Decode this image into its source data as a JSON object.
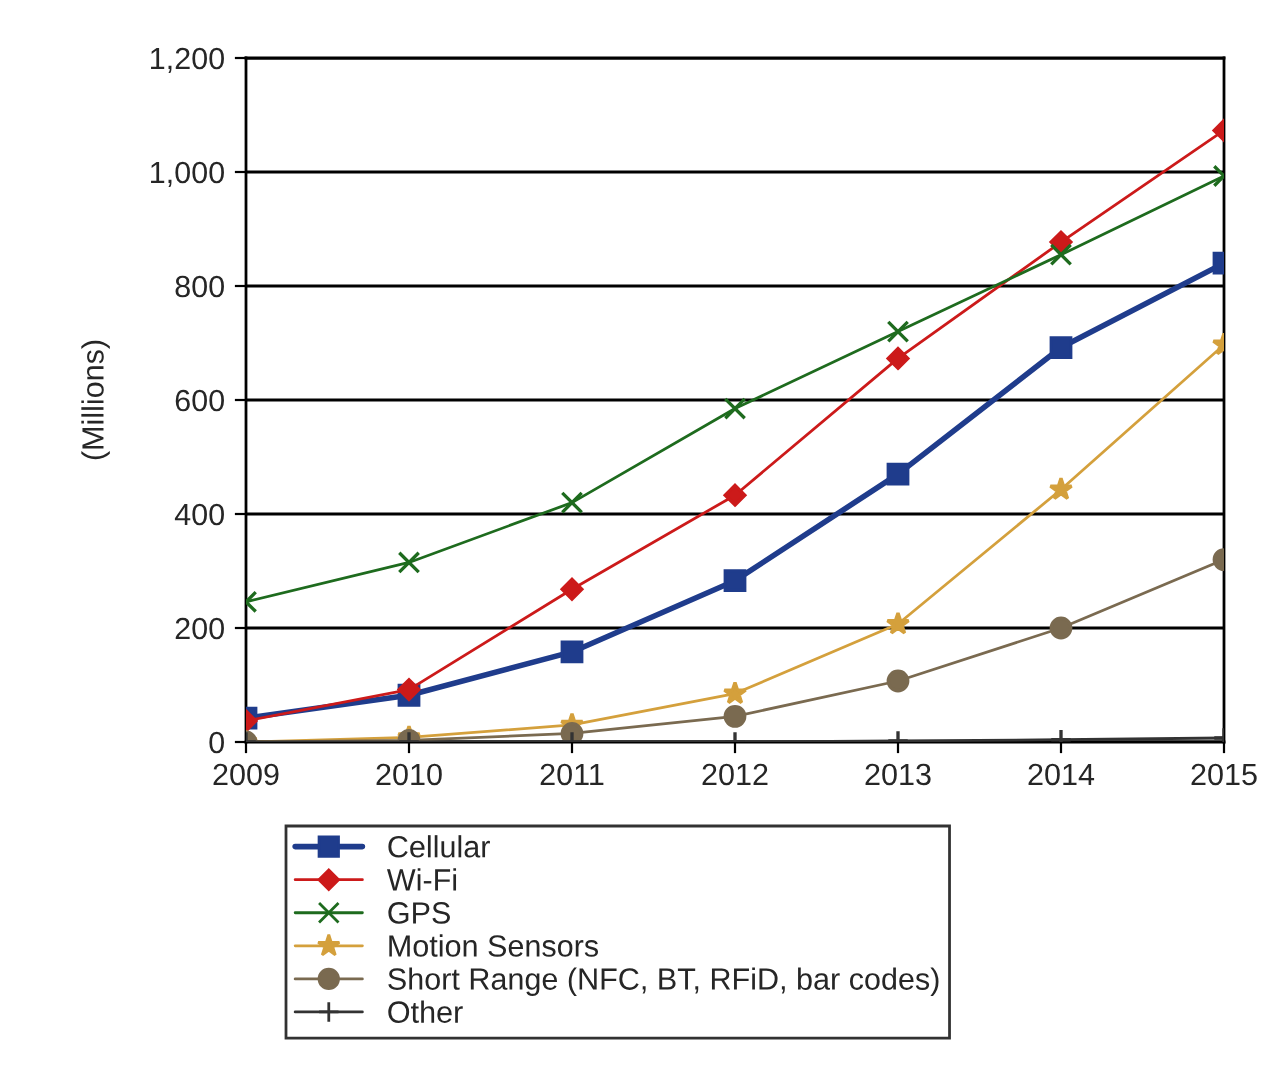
{
  "chart_data": {
    "type": "line",
    "ylabel": "(Millions)",
    "categories": [
      "2009",
      "2010",
      "2011",
      "2012",
      "2013",
      "2014",
      "2015"
    ],
    "ylim": [
      0,
      1200
    ],
    "yticks": [
      {
        "value": 0,
        "label": "0"
      },
      {
        "value": 200,
        "label": "200"
      },
      {
        "value": 400,
        "label": "400"
      },
      {
        "value": 600,
        "label": "600"
      },
      {
        "value": 800,
        "label": "800"
      },
      {
        "value": 1000,
        "label": "1,000"
      },
      {
        "value": 1200,
        "label": "1,200"
      }
    ],
    "grid": "y",
    "legend": "bottom",
    "series": [
      {
        "name": "Cellular",
        "color": "#1f3c8c",
        "marker": "square",
        "values": [
          42,
          82,
          158,
          283,
          470,
          692,
          840
        ]
      },
      {
        "name": "Wi-Fi",
        "color": "#cc1a1a",
        "marker": "diamond",
        "values": [
          37,
          92,
          268,
          433,
          673,
          877,
          1073
        ]
      },
      {
        "name": "GPS",
        "color": "#1e6b1e",
        "marker": "cross",
        "values": [
          246,
          315,
          420,
          585,
          720,
          855,
          993
        ]
      },
      {
        "name": "Motion Sensors",
        "color": "#d4a03c",
        "marker": "star",
        "values": [
          0,
          8,
          30,
          85,
          207,
          443,
          697
        ]
      },
      {
        "name": "Short Range (NFC, BT, RFiD, bar codes)",
        "color": "#7a6a50",
        "marker": "circle",
        "values": [
          0,
          3,
          15,
          45,
          107,
          200,
          320
        ]
      },
      {
        "name": "Other",
        "color": "#333333",
        "marker": "plus",
        "values": [
          0,
          0,
          0,
          0,
          2,
          4,
          7
        ]
      }
    ]
  }
}
